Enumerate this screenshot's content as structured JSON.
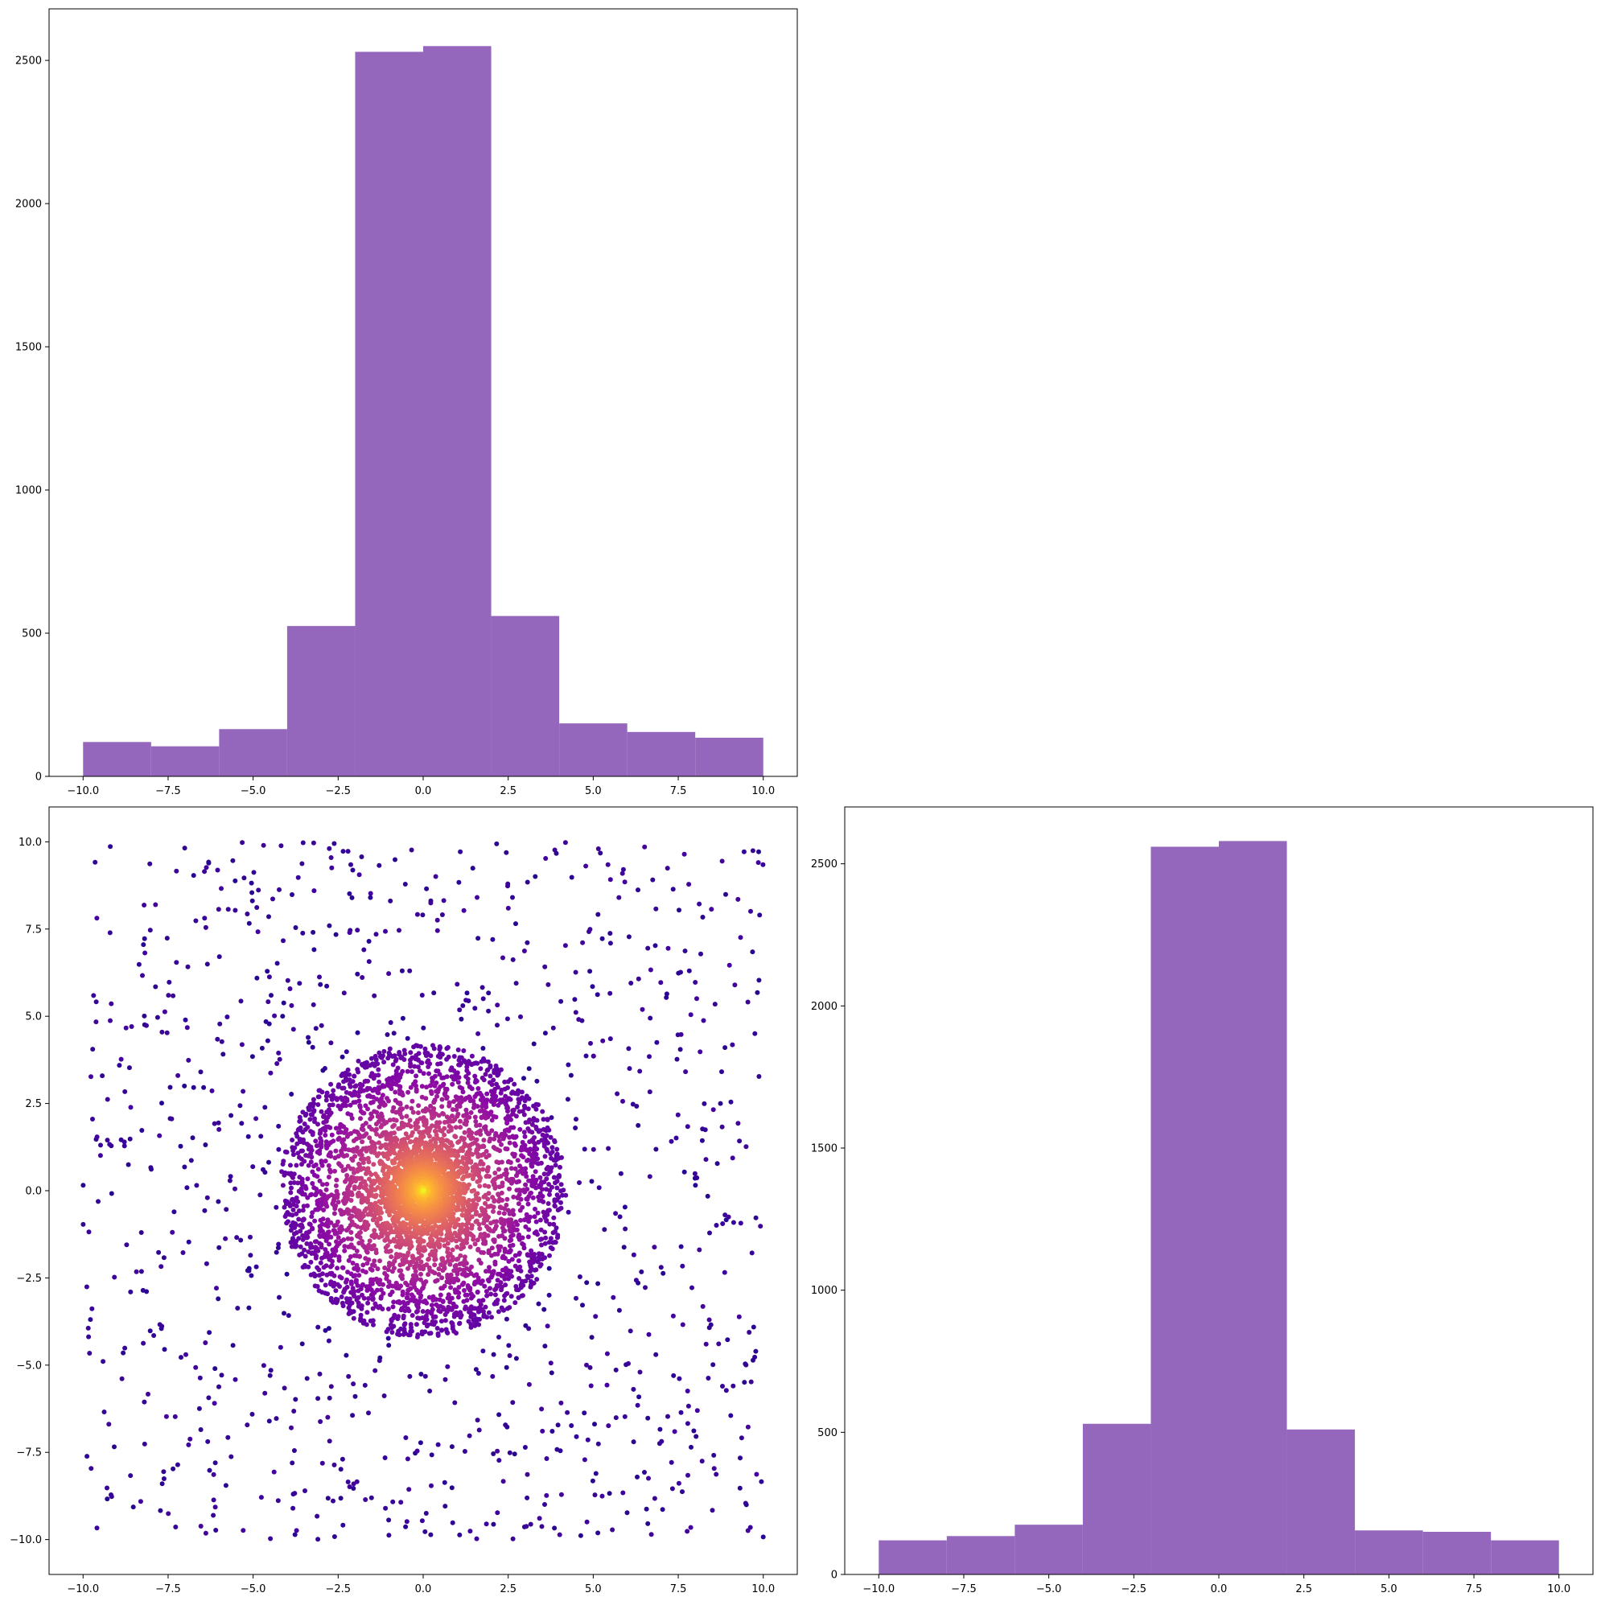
{
  "chart_data": [
    {
      "id": "top-left",
      "type": "bar",
      "subtype": "histogram",
      "title": "",
      "xlabel": "",
      "ylabel": "",
      "color": "#9467bd",
      "bin_edges": [
        -10,
        -8,
        -6,
        -4,
        -2,
        0,
        2,
        4,
        6,
        8,
        10
      ],
      "values": [
        120,
        105,
        165,
        525,
        2530,
        2550,
        560,
        185,
        155,
        135
      ],
      "xlim": [
        -11,
        11
      ],
      "ylim": [
        0,
        2680
      ],
      "xticks": [
        -10.0,
        -7.5,
        -5.0,
        -2.5,
        0.0,
        2.5,
        5.0,
        7.5,
        10.0
      ],
      "xtick_labels": [
        "−10.0",
        "−7.5",
        "−5.0",
        "−2.5",
        "0.0",
        "2.5",
        "5.0",
        "7.5",
        "10.0"
      ],
      "yticks": [
        0,
        500,
        1000,
        1500,
        2000,
        2500
      ],
      "ytick_labels": [
        "0",
        "500",
        "1000",
        "1500",
        "2000",
        "2500"
      ],
      "grid": false
    },
    {
      "id": "bottom-left",
      "type": "scatter",
      "title": "",
      "xlabel": "",
      "ylabel": "",
      "colormap": "plasma",
      "color_encodes": "point density",
      "approx_points": 5000,
      "distribution": "dense cluster centered at (0, 0) with radius about 4.2, plus sparse uniform background over [-10, 10] x [-10, 10]",
      "xlim": [
        -11,
        11
      ],
      "ylim": [
        -11,
        11
      ],
      "xticks": [
        -10.0,
        -7.5,
        -5.0,
        -2.5,
        0.0,
        2.5,
        5.0,
        7.5,
        10.0
      ],
      "xtick_labels": [
        "−10.0",
        "−7.5",
        "−5.0",
        "−2.5",
        "0.0",
        "2.5",
        "5.0",
        "7.5",
        "10.0"
      ],
      "yticks": [
        -10.0,
        -7.5,
        -5.0,
        -2.5,
        0.0,
        2.5,
        5.0,
        7.5,
        10.0
      ],
      "ytick_labels": [
        "−10.0",
        "−7.5",
        "−5.0",
        "−2.5",
        "0.0",
        "2.5",
        "5.0",
        "7.5",
        "10.0"
      ],
      "grid": false
    },
    {
      "id": "bottom-right",
      "type": "bar",
      "subtype": "histogram",
      "title": "",
      "xlabel": "",
      "ylabel": "",
      "color": "#9467bd",
      "bin_edges": [
        -10,
        -8,
        -6,
        -4,
        -2,
        0,
        2,
        4,
        6,
        8,
        10
      ],
      "values": [
        120,
        135,
        175,
        530,
        2560,
        2580,
        510,
        155,
        150,
        120
      ],
      "xlim": [
        -11,
        11
      ],
      "ylim": [
        0,
        2700
      ],
      "xticks": [
        -10.0,
        -7.5,
        -5.0,
        -2.5,
        0.0,
        2.5,
        5.0,
        7.5,
        10.0
      ],
      "xtick_labels": [
        "−10.0",
        "−7.5",
        "−5.0",
        "−2.5",
        "0.0",
        "2.5",
        "5.0",
        "7.5",
        "10.0"
      ],
      "yticks": [
        0,
        500,
        1000,
        1500,
        2000,
        2500
      ],
      "ytick_labels": [
        "0",
        "500",
        "1000",
        "1500",
        "2000",
        "2500"
      ],
      "grid": false
    }
  ]
}
